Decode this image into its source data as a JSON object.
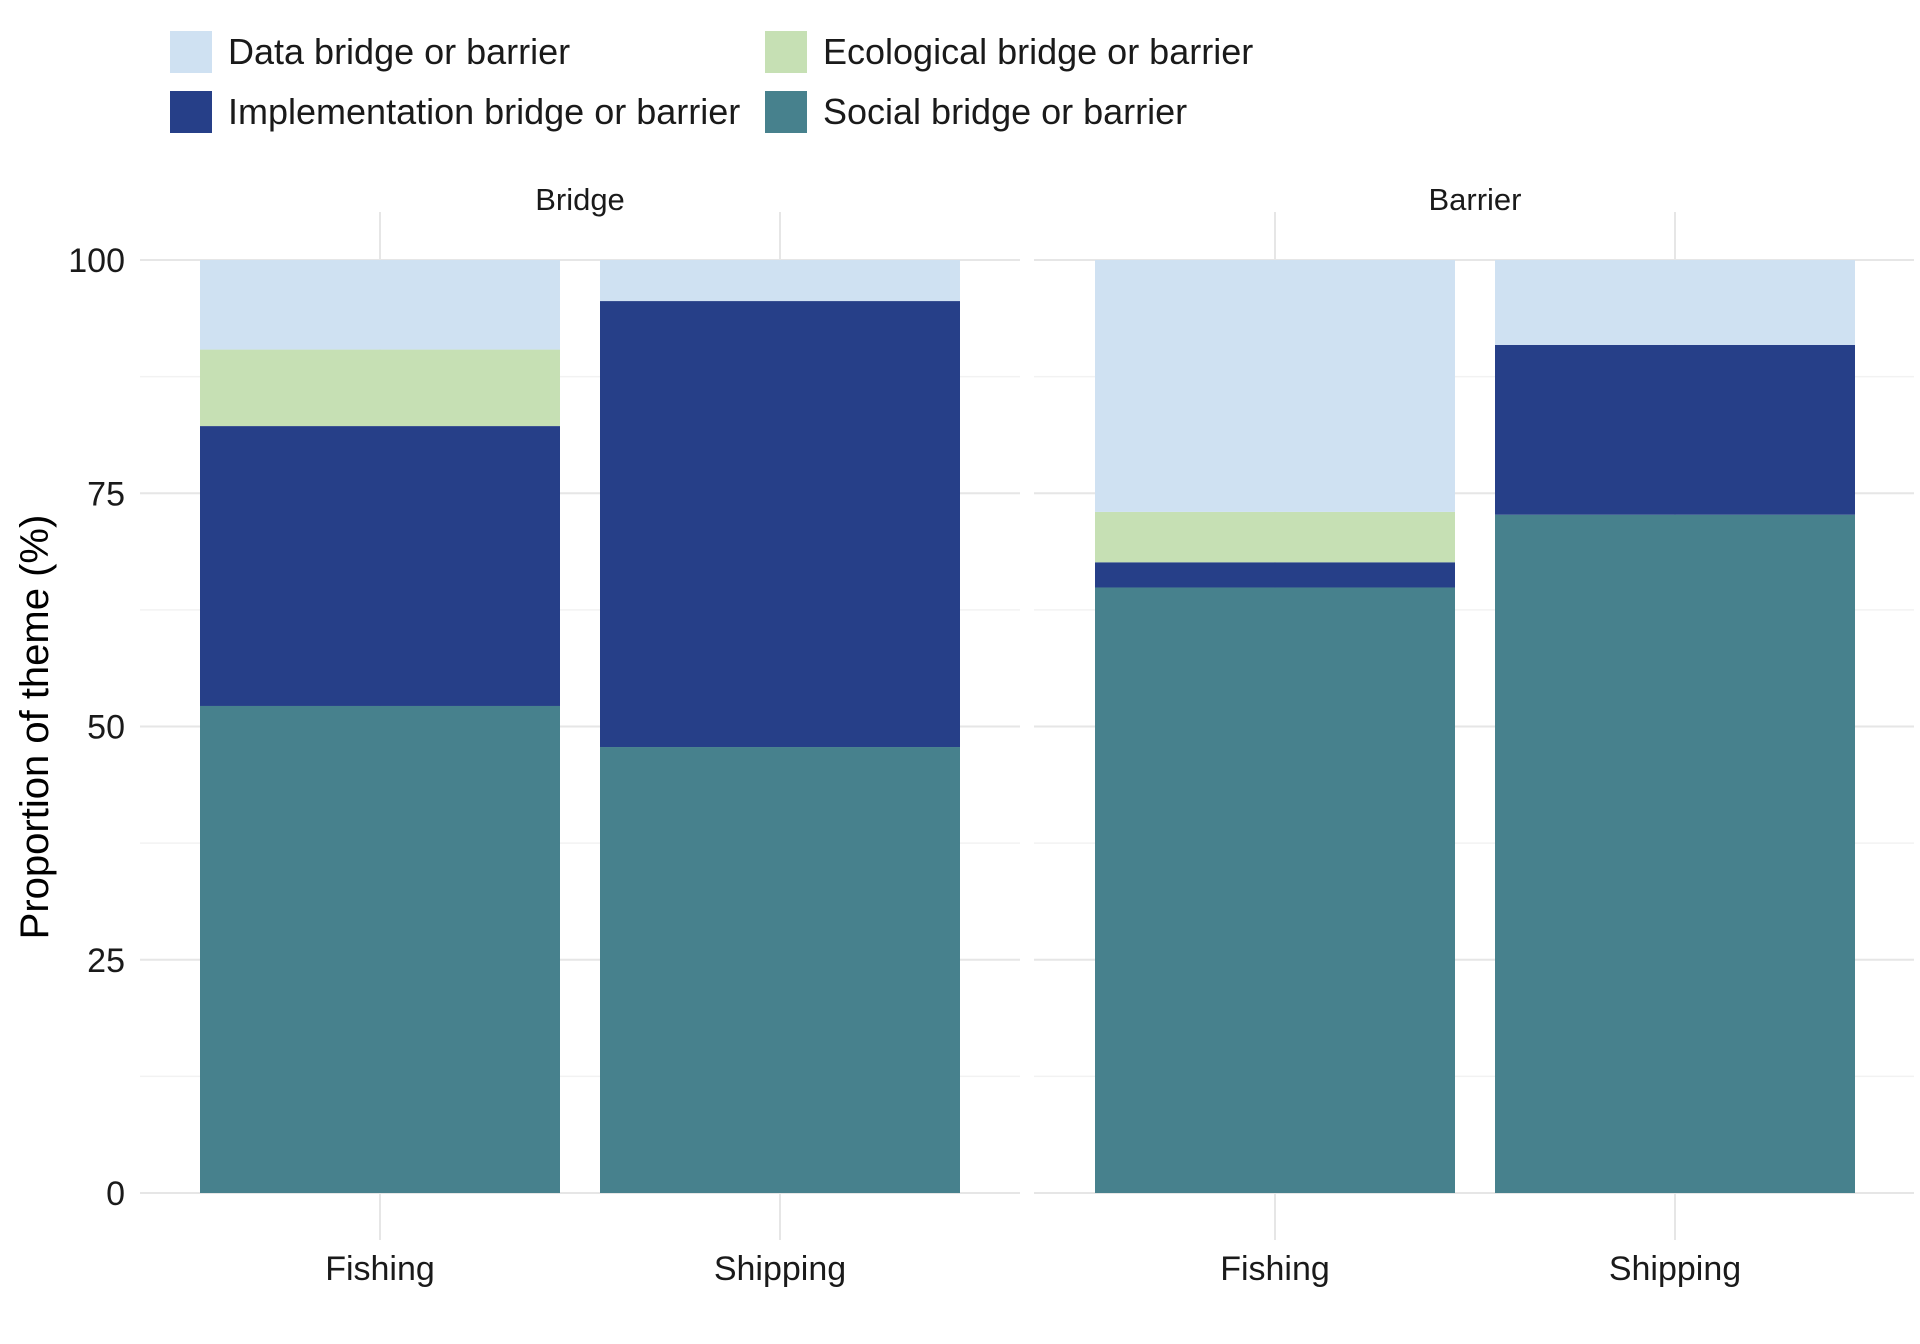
{
  "chart_data": {
    "type": "bar",
    "stacked": true,
    "facet_by": "bridge/barrier",
    "ylabel": "Proportion of theme (%)",
    "xlabel": "",
    "ylim": [
      0,
      100
    ],
    "y_ticks": [
      0,
      25,
      50,
      75,
      100
    ],
    "grid": true,
    "legend_position": "top-left",
    "categories": [
      "Fishing",
      "Shipping"
    ],
    "series": [
      {
        "name": "Data bridge or barrier",
        "color": "#cfe1f2"
      },
      {
        "name": "Ecological bridge or barrier",
        "color": "#c6e0b4"
      },
      {
        "name": "Implementation bridge or barrier",
        "color": "#263f88"
      },
      {
        "name": "Social bridge or barrier",
        "color": "#47818d"
      }
    ],
    "stack_order_bottom_to_top": [
      "Social bridge or barrier",
      "Implementation bridge or barrier",
      "Ecological bridge or barrier",
      "Data bridge or barrier"
    ],
    "panels": [
      {
        "title": "Bridge",
        "values": {
          "Fishing": {
            "Social bridge or barrier": 52.2,
            "Implementation bridge or barrier": 30.0,
            "Ecological bridge or barrier": 8.2,
            "Data bridge or barrier": 9.6
          },
          "Shipping": {
            "Social bridge or barrier": 47.8,
            "Implementation bridge or barrier": 47.8,
            "Ecological bridge or barrier": 0,
            "Data bridge or barrier": 4.4
          }
        }
      },
      {
        "title": "Barrier",
        "values": {
          "Fishing": {
            "Social bridge or barrier": 64.9,
            "Implementation bridge or barrier": 2.7,
            "Ecological bridge or barrier": 5.4,
            "Data bridge or barrier": 27.0
          },
          "Shipping": {
            "Social bridge or barrier": 72.7,
            "Implementation bridge or barrier": 18.2,
            "Ecological bridge or barrier": 0,
            "Data bridge or barrier": 9.1
          }
        }
      }
    ]
  }
}
